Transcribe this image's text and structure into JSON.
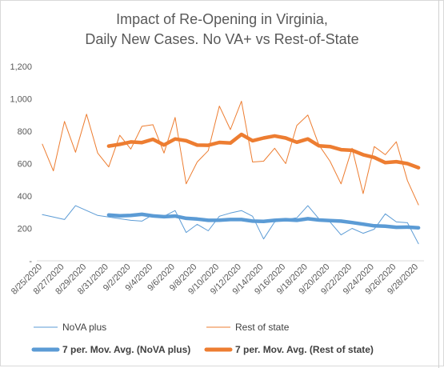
{
  "chart_data": {
    "type": "line",
    "title": "Impact of Re-Opening in Virginia,",
    "subtitle": "Daily New Cases. No VA+ vs Rest-of-State",
    "xlabel": "",
    "ylabel": "",
    "ylim": [
      0,
      1200
    ],
    "y_ticks": [
      "-",
      "200",
      "400",
      "600",
      "800",
      "1,000",
      "1,200"
    ],
    "grid": false,
    "legend_position": "bottom",
    "x": [
      "8/25/2020",
      "8/26/2020",
      "8/27/2020",
      "8/28/2020",
      "8/29/2020",
      "8/30/2020",
      "8/31/2020",
      "9/1/2020",
      "9/2/2020",
      "9/3/2020",
      "9/4/2020",
      "9/5/2020",
      "9/6/2020",
      "9/7/2020",
      "9/8/2020",
      "9/9/2020",
      "9/10/2020",
      "9/11/2020",
      "9/12/2020",
      "9/13/2020",
      "9/14/2020",
      "9/15/2020",
      "9/16/2020",
      "9/17/2020",
      "9/18/2020",
      "9/19/2020",
      "9/20/2020",
      "9/21/2020",
      "9/22/2020",
      "9/23/2020",
      "9/24/2020",
      "9/25/2020",
      "9/26/2020",
      "9/27/2020",
      "9/28/2020"
    ],
    "x_tick_labels": [
      "8/25/2020",
      "8/27/2020",
      "8/29/2020",
      "8/31/2020",
      "9/2/2020",
      "9/4/2020",
      "9/6/2020",
      "9/8/2020",
      "9/10/2020",
      "9/12/2020",
      "9/14/2020",
      "9/16/2020",
      "9/18/2020",
      "9/20/2020",
      "9/22/2020",
      "9/24/2020",
      "9/26/2020",
      "9/28/2020"
    ],
    "series": [
      {
        "name": "NoVA plus",
        "color": "#5B9BD5",
        "style": "thin",
        "values": [
          285,
          270,
          255,
          340,
          310,
          280,
          270,
          260,
          250,
          245,
          285,
          275,
          310,
          175,
          225,
          185,
          275,
          295,
          310,
          275,
          135,
          240,
          255,
          265,
          340,
          260,
          240,
          160,
          200,
          170,
          195,
          290,
          240,
          235,
          105
        ]
      },
      {
        "name": "Rest of state",
        "color": "#ED7D31",
        "style": "thin",
        "values": [
          720,
          555,
          860,
          670,
          905,
          665,
          580,
          775,
          690,
          830,
          840,
          665,
          885,
          475,
          610,
          680,
          955,
          810,
          985,
          610,
          615,
          695,
          600,
          835,
          900,
          715,
          615,
          475,
          695,
          415,
          705,
          655,
          735,
          495,
          345
        ]
      },
      {
        "name": "7 per. Mov. Avg. (NoVA plus)",
        "color": "#5B9BD5",
        "style": "thick",
        "values": [
          null,
          null,
          null,
          null,
          null,
          null,
          283,
          278,
          280,
          287,
          277,
          272,
          276,
          262,
          258,
          250,
          251,
          255,
          255,
          245,
          243,
          250,
          254,
          250,
          260,
          252,
          248,
          245,
          236,
          226,
          216,
          214,
          207,
          208,
          204
        ]
      },
      {
        "name": "7 per. Mov. Avg. (Rest of state)",
        "color": "#ED7D31",
        "style": "thick",
        "values": [
          null,
          null,
          null,
          null,
          null,
          null,
          708,
          719,
          734,
          730,
          750,
          715,
          752,
          741,
          714,
          713,
          731,
          727,
          780,
          741,
          758,
          771,
          758,
          732,
          752,
          710,
          705,
          686,
          682,
          655,
          638,
          606,
          612,
          600,
          575
        ]
      }
    ]
  }
}
